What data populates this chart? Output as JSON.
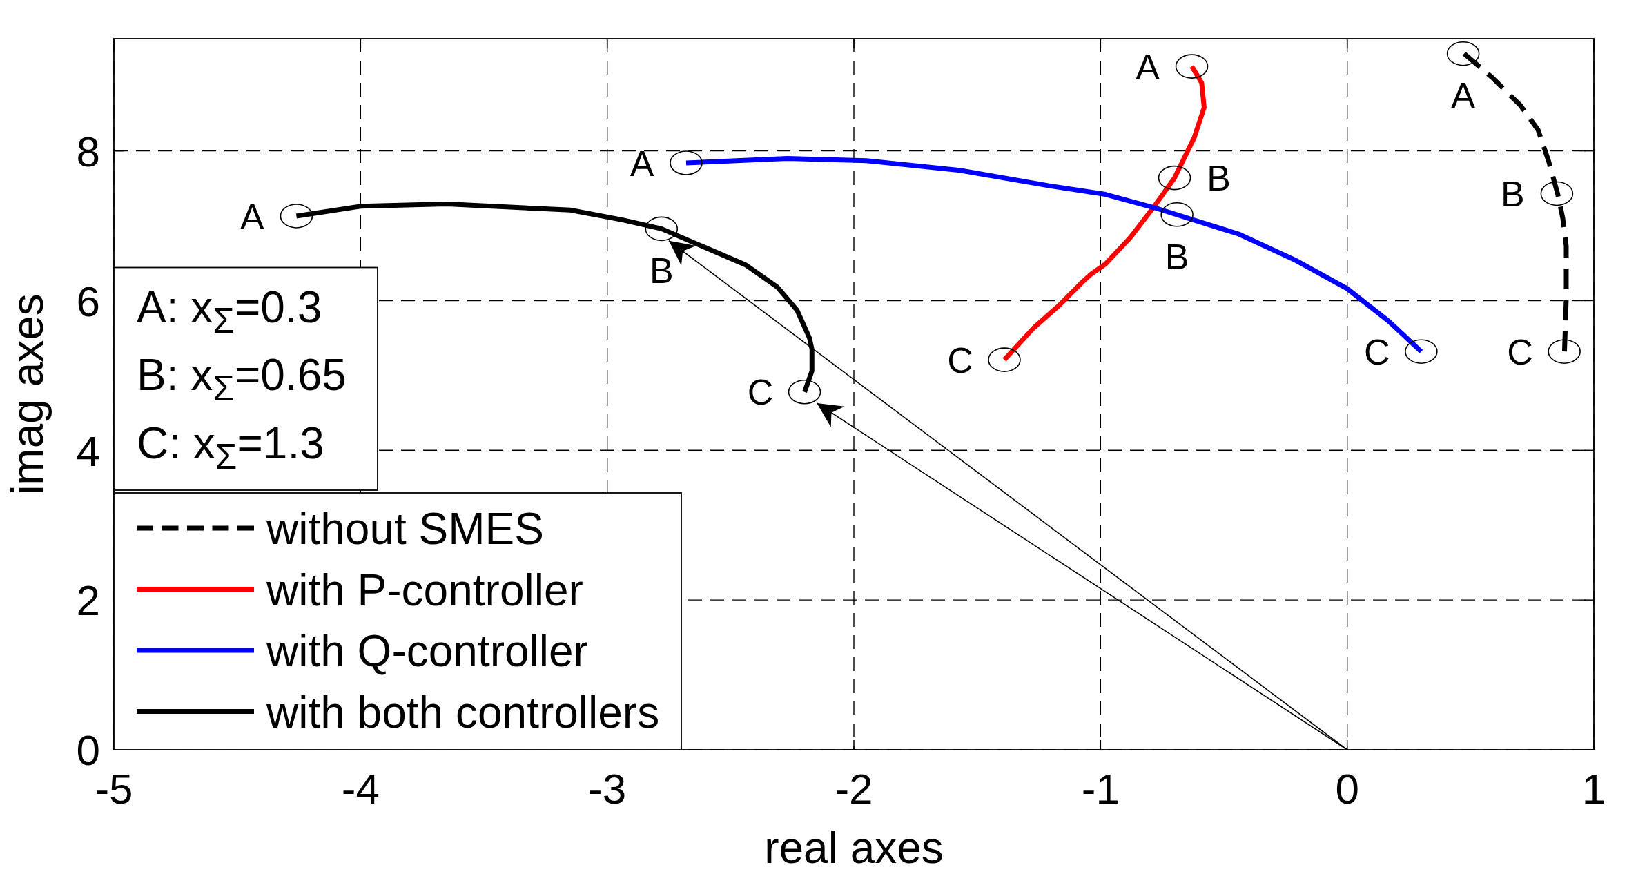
{
  "chart_data": {
    "type": "line",
    "xlabel": "real axes",
    "ylabel": "imag axes",
    "xlim": [
      -5,
      1
    ],
    "xticks": [
      -5,
      -4,
      -3,
      -2,
      -1,
      0,
      1
    ],
    "ylim": [
      0,
      9.5
    ],
    "yticks": [
      0,
      2,
      4,
      6,
      8
    ],
    "grid": true,
    "legend": "bottom left",
    "series": [
      {
        "name": "without SMES",
        "color": "#000000",
        "line_style": "dashed",
        "x": [
          0.474,
          0.588,
          0.702,
          0.774,
          0.817,
          0.853,
          0.874,
          0.888,
          0.888,
          0.881
        ],
        "values": [
          9.3,
          8.98,
          8.61,
          8.28,
          7.86,
          7.43,
          7.1,
          6.73,
          6.02,
          5.32
        ]
      },
      {
        "name": "with P-controller",
        "color": "#ff0000",
        "x": [
          -0.63,
          -0.59,
          -0.58,
          -0.62,
          -0.7,
          -0.78,
          -0.88,
          -0.98,
          -1.04,
          -1.07,
          -1.17,
          -1.27,
          -1.39
        ],
        "values": [
          9.13,
          8.91,
          8.58,
          8.18,
          7.64,
          7.27,
          6.84,
          6.49,
          6.35,
          6.26,
          5.93,
          5.64,
          5.21
        ]
      },
      {
        "name": "with Q-controller",
        "color": "#0000ff",
        "x": [
          -2.68,
          -2.27,
          -1.95,
          -1.57,
          -1.2,
          -0.98,
          -0.78,
          -0.44,
          -0.21,
          0.0,
          0.17,
          0.3
        ],
        "values": [
          7.84,
          7.9,
          7.87,
          7.74,
          7.53,
          7.42,
          7.24,
          6.89,
          6.54,
          6.16,
          5.72,
          5.32
        ]
      },
      {
        "name": "with both controllers",
        "color": "#000000",
        "x": [
          -4.26,
          -4.0,
          -3.65,
          -3.15,
          -2.94,
          -2.78,
          -2.44,
          -2.31,
          -2.23,
          -2.18,
          -2.17,
          -2.17,
          -2.2
        ],
        "values": [
          7.13,
          7.26,
          7.29,
          7.21,
          7.08,
          6.96,
          6.48,
          6.18,
          5.87,
          5.5,
          5.35,
          5.06,
          4.78
        ]
      },
      {
        "color": "#000000",
        "x": [
          0,
          -2.75
        ],
        "values": [
          0,
          6.8
        ]
      },
      {
        "color": "#000000",
        "x": [
          0,
          -2.15
        ],
        "values": [
          0,
          4.63
        ]
      }
    ],
    "annotations": [
      "A: x$_{Σ}$=0.3",
      "B: x$_{Σ}$=0.65",
      "C: x$_{Σ}$=1.3",
      {
        "text": "A",
        "x": -4.26,
        "y": 7.13
      },
      {
        "text": "B",
        "x": -2.78,
        "y": 6.96
      },
      {
        "text": "C",
        "x": -2.2,
        "y": 4.78
      },
      {
        "text": "A",
        "x": -2.68,
        "y": 7.84
      },
      {
        "text": "B",
        "x": -0.69,
        "y": 7.15
      },
      {
        "text": "C",
        "x": 0.3,
        "y": 5.32
      },
      {
        "text": "A",
        "x": -0.63,
        "y": 9.13
      },
      {
        "text": "B",
        "x": -0.7,
        "y": 7.64
      },
      {
        "text": "C",
        "x": -1.39,
        "y": 5.21
      },
      {
        "text": "A",
        "x": 0.47,
        "y": 9.3
      },
      {
        "text": "B",
        "x": 0.85,
        "y": 7.43
      },
      {
        "text": "C",
        "x": 0.88,
        "y": 5.32
      }
    ]
  }
}
